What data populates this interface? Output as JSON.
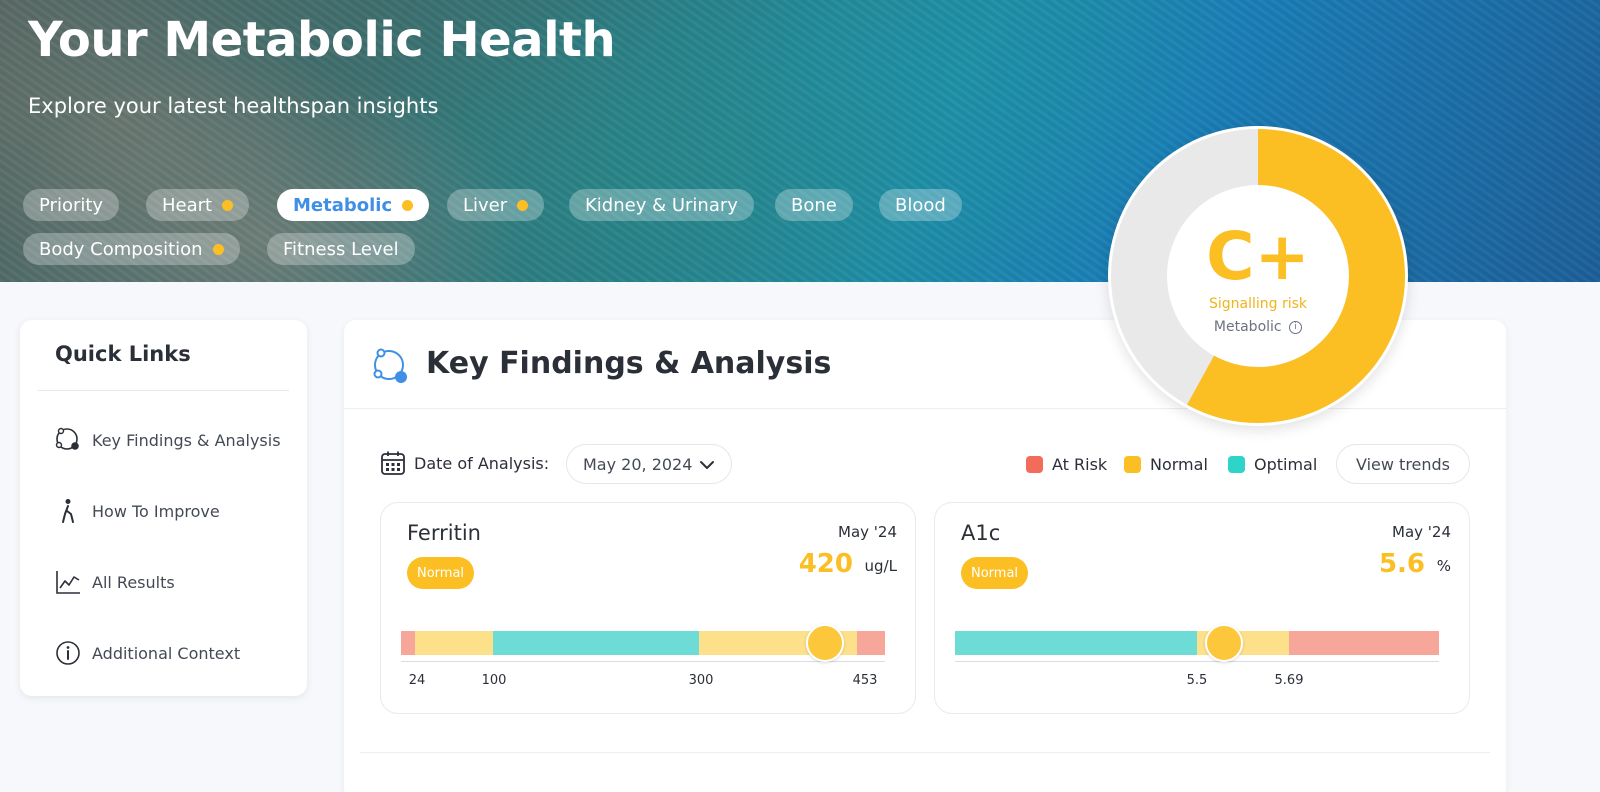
{
  "hero": {
    "title": "Your Metabolic Health",
    "subtitle": "Explore your latest healthspan insights"
  },
  "tabs": [
    {
      "label": "Priority",
      "dot": false,
      "active": false
    },
    {
      "label": "Heart",
      "dot": true,
      "active": false
    },
    {
      "label": "Metabolic",
      "dot": true,
      "active": true
    },
    {
      "label": "Liver",
      "dot": true,
      "active": false
    },
    {
      "label": "Kidney & Urinary",
      "dot": false,
      "active": false
    },
    {
      "label": "Bone",
      "dot": false,
      "active": false
    },
    {
      "label": "Blood",
      "dot": false,
      "active": false
    },
    {
      "label": "Body Composition",
      "dot": true,
      "active": false
    },
    {
      "label": "Fitness Level",
      "dot": false,
      "active": false
    }
  ],
  "grade": {
    "letter": "C+",
    "status": "Signalling risk",
    "category": "Metabolic",
    "fill_fraction": 0.58,
    "fill_color": "#fbbf24"
  },
  "quick_links": {
    "title": "Quick Links",
    "items": [
      {
        "label": "Key Findings & Analysis",
        "icon": "key-findings-icon"
      },
      {
        "label": "How To Improve",
        "icon": "person-walk-icon"
      },
      {
        "label": "All Results",
        "icon": "line-chart-icon"
      },
      {
        "label": "Additional Context",
        "icon": "info-icon"
      }
    ]
  },
  "main": {
    "title": "Key Findings & Analysis",
    "date_label": "Date of Analysis:",
    "date_value": "May 20, 2024",
    "legend": [
      {
        "label": "At Risk",
        "color": "#f26b5b"
      },
      {
        "label": "Normal",
        "color": "#fbbf24"
      },
      {
        "label": "Optimal",
        "color": "#2dd4c7"
      }
    ],
    "view_trends": "View trends"
  },
  "metrics": [
    {
      "name": "Ferritin",
      "date": "May '24",
      "badge": "Normal",
      "value": "420",
      "unit": "ug/L",
      "marker_value": 420,
      "ticks": [
        "24",
        "100",
        "300",
        "453"
      ]
    },
    {
      "name": "A1c",
      "date": "May '24",
      "badge": "Normal",
      "value": "5.6",
      "unit": "%",
      "marker_value": 5.6,
      "ticks": [
        "5.5",
        "5.69"
      ]
    }
  ],
  "colors": {
    "risk": "#f7a799",
    "normal": "#fde08a",
    "optimal": "#6ddcd6",
    "accent": "#3f8fe6"
  }
}
